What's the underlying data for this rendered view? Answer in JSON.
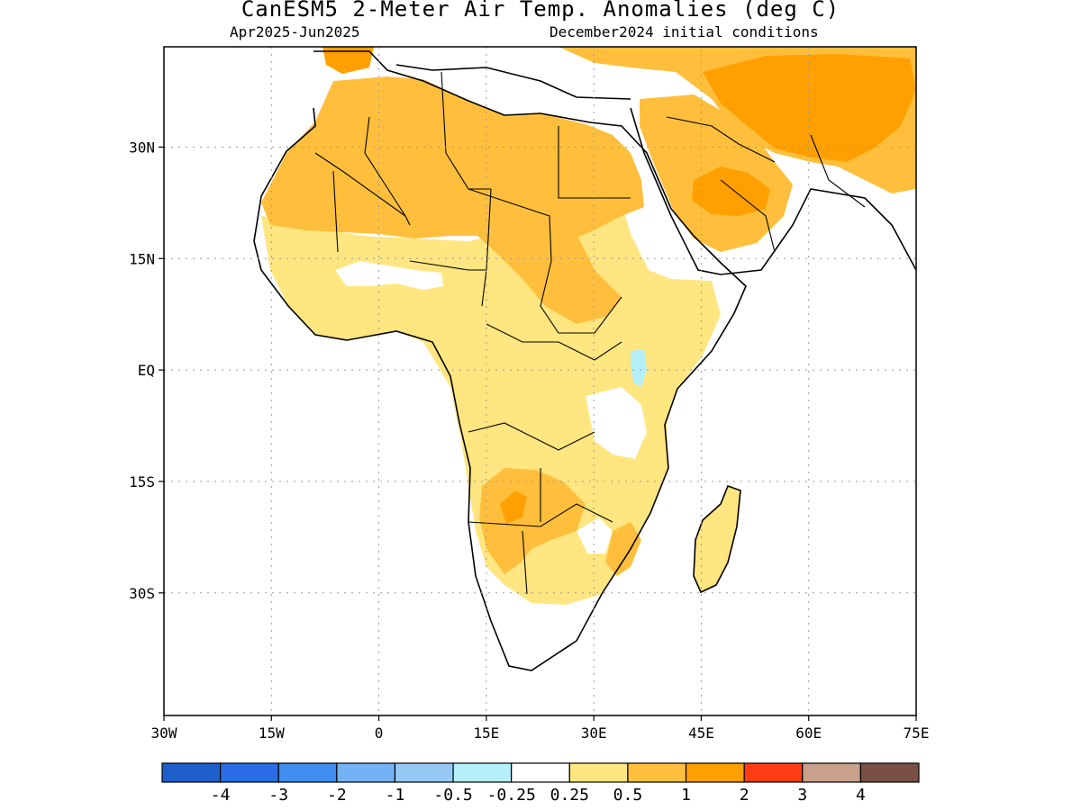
{
  "header": {
    "title": "CanESM5 2-Meter Air Temp. Anomalies (deg C)",
    "period": "Apr2025-Jun2025",
    "initial_conditions": "December2024 initial conditions"
  },
  "map": {
    "region": "Africa and Arabian Peninsula",
    "lon_range": [
      -30,
      75
    ],
    "lat_range": [
      -46.5,
      43.5
    ],
    "lat_ticks": [
      {
        "value": 30,
        "label": "30N"
      },
      {
        "value": 15,
        "label": "15N"
      },
      {
        "value": 0,
        "label": "EQ"
      },
      {
        "value": -15,
        "label": "15S"
      },
      {
        "value": -30,
        "label": "30S"
      }
    ],
    "lon_ticks": [
      {
        "value": -30,
        "label": "30W"
      },
      {
        "value": -15,
        "label": "15W"
      },
      {
        "value": 0,
        "label": "0"
      },
      {
        "value": 15,
        "label": "15E"
      },
      {
        "value": 30,
        "label": "30E"
      },
      {
        "value": 45,
        "label": "45E"
      },
      {
        "value": 60,
        "label": "60E"
      },
      {
        "value": 75,
        "label": "75E"
      }
    ],
    "grid": "dotted"
  },
  "colorbar": {
    "colors": [
      "#1f5fcc",
      "#2a6ee6",
      "#3f8ef0",
      "#73b2f5",
      "#96c8f5",
      "#b4effa",
      "#ffffff",
      "#ffe680",
      "#ffbf3c",
      "#ffa000",
      "#ff3c14",
      "#c8a08c",
      "#785046"
    ],
    "labels": [
      "-4",
      "-3",
      "-2",
      "-1",
      "-0.5",
      "-0.25",
      "0.25",
      "0.5",
      "1",
      "2",
      "3",
      "4"
    ]
  }
}
